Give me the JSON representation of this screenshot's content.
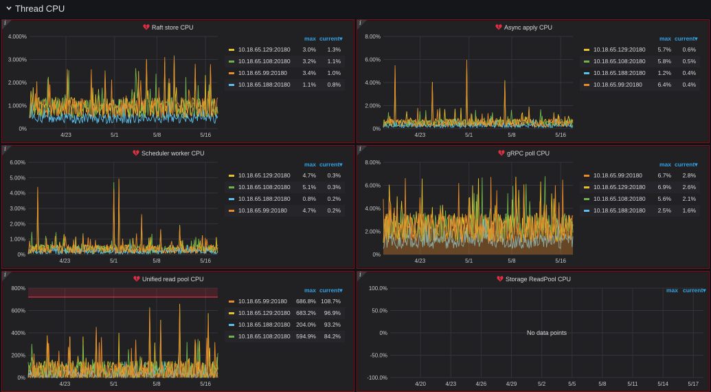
{
  "row": {
    "title": "Thread CPU"
  },
  "legend_headers": {
    "max": "max",
    "current": "current▾"
  },
  "panels": [
    {
      "title": "Raft store CPU",
      "y_ticks": [
        "4.000%",
        "3.000%",
        "2.000%",
        "1.000%",
        "0%"
      ],
      "x_ticks": [
        "4/23",
        "5/1",
        "5/8",
        "5/16"
      ],
      "series": [
        {
          "name": "10.18.65.129:20180",
          "color": "#e5c22c",
          "max": "3.0%",
          "current": "1.3%"
        },
        {
          "name": "10.18.65.108:20180",
          "color": "#6fb54b",
          "max": "3.2%",
          "current": "1.1%"
        },
        {
          "name": "10.18.65.99:20180",
          "color": "#eb8c2a",
          "max": "3.4%",
          "current": "1.0%"
        },
        {
          "name": "10.18.65.188:20180",
          "color": "#5ac0ed",
          "max": "1.1%",
          "current": "0.8%"
        }
      ],
      "chart_data": {
        "type": "line",
        "ylim": [
          0,
          4
        ],
        "unit": "%",
        "x_range": [
          "4/17",
          "5/18"
        ],
        "baseline": 0.9,
        "noise": 0.45,
        "spikes": [
          [
            0.1,
            2.3
          ],
          [
            0.2,
            2.8
          ],
          [
            0.33,
            2.7
          ],
          [
            0.4,
            2.6
          ],
          [
            0.58,
            2.5
          ],
          [
            0.62,
            3.1
          ],
          [
            0.72,
            3.2
          ],
          [
            0.77,
            3.3
          ],
          [
            0.88,
            2.9
          ],
          [
            0.96,
            2.8
          ]
        ]
      }
    },
    {
      "title": "Async apply CPU",
      "y_ticks": [
        "8.00%",
        "6.00%",
        "4.00%",
        "2.00%",
        "0%"
      ],
      "x_ticks": [
        "4/23",
        "5/1",
        "5/8",
        "5/16"
      ],
      "series": [
        {
          "name": "10.18.65.129:20180",
          "color": "#e5c22c",
          "max": "5.7%",
          "current": "0.6%"
        },
        {
          "name": "10.18.65.108:20180",
          "color": "#6fb54b",
          "max": "5.8%",
          "current": "0.5%"
        },
        {
          "name": "10.18.65.188:20180",
          "color": "#5ac0ed",
          "max": "1.2%",
          "current": "0.4%"
        },
        {
          "name": "10.18.65.99:20180",
          "color": "#eb8c2a",
          "max": "6.4%",
          "current": "0.4%"
        }
      ],
      "chart_data": {
        "type": "line",
        "ylim": [
          0,
          8
        ],
        "unit": "%",
        "x_range": [
          "4/17",
          "5/18"
        ],
        "baseline": 0.5,
        "noise": 0.35,
        "spikes": [
          [
            0.06,
            5.6
          ],
          [
            0.26,
            4.3
          ],
          [
            0.44,
            6.3
          ],
          [
            0.64,
            4.4
          ],
          [
            0.77,
            2.0
          ],
          [
            0.9,
            1.5
          ]
        ]
      }
    },
    {
      "title": "Scheduler worker CPU",
      "y_ticks": [
        "6.00%",
        "5.00%",
        "4.00%",
        "3.00%",
        "2.00%",
        "1.00%",
        "0%"
      ],
      "x_ticks": [
        "4/23",
        "5/1",
        "5/8",
        "5/16"
      ],
      "series": [
        {
          "name": "10.18.65.129:20180",
          "color": "#e5c22c",
          "max": "4.7%",
          "current": "0.3%"
        },
        {
          "name": "10.18.65.108:20180",
          "color": "#6fb54b",
          "max": "5.1%",
          "current": "0.3%"
        },
        {
          "name": "10.18.65.188:20180",
          "color": "#5ac0ed",
          "max": "0.8%",
          "current": "0.2%"
        },
        {
          "name": "10.18.65.99:20180",
          "color": "#eb8c2a",
          "max": "4.7%",
          "current": "0.2%"
        }
      ],
      "chart_data": {
        "type": "line",
        "ylim": [
          0,
          6
        ],
        "unit": "%",
        "x_range": [
          "4/17",
          "5/18"
        ],
        "baseline": 0.35,
        "noise": 0.3,
        "spikes": [
          [
            0.05,
            4.7
          ],
          [
            0.29,
            1.4
          ],
          [
            0.45,
            4.7
          ],
          [
            0.48,
            5.1
          ],
          [
            0.6,
            2.7
          ],
          [
            0.7,
            1.7
          ],
          [
            0.8,
            2.1
          ],
          [
            0.92,
            1.3
          ]
        ]
      }
    },
    {
      "title": "gRPC poll CPU",
      "y_ticks": [
        "8.00%",
        "6.00%",
        "4.00%",
        "2.00%",
        "0%"
      ],
      "x_ticks": [
        "4/23",
        "5/1",
        "5/8",
        "5/16"
      ],
      "series": [
        {
          "name": "10.18.65.99:20180",
          "color": "#eb8c2a",
          "max": "6.7%",
          "current": "2.8%"
        },
        {
          "name": "10.18.65.129:20180",
          "color": "#e5c22c",
          "max": "6.9%",
          "current": "2.6%"
        },
        {
          "name": "10.18.65.108:20180",
          "color": "#6fb54b",
          "max": "5.6%",
          "current": "2.1%"
        },
        {
          "name": "10.18.65.188:20180",
          "color": "#5ac0ed",
          "max": "2.5%",
          "current": "1.6%"
        }
      ],
      "chart_data": {
        "type": "area",
        "ylim": [
          0,
          8
        ],
        "unit": "%",
        "x_range": [
          "4/17",
          "5/18"
        ],
        "baseline": 2.3,
        "noise": 1.3,
        "spikes": [
          [
            0.04,
            4.8
          ],
          [
            0.3,
            4.5
          ],
          [
            0.45,
            5.0
          ],
          [
            0.7,
            6.9
          ],
          [
            0.74,
            6.3
          ],
          [
            0.85,
            4.9
          ]
        ]
      }
    },
    {
      "title": "Unified read pool CPU",
      "y_ticks": [
        "800%",
        "600%",
        "400%",
        "200%",
        "0%"
      ],
      "x_ticks": [
        "4/23",
        "5/1",
        "5/8",
        "5/16"
      ],
      "series": [
        {
          "name": "10.18.65.99:20180",
          "color": "#eb8c2a",
          "max": "686.8%",
          "current": "108.7%"
        },
        {
          "name": "10.18.65.129:20180",
          "color": "#e5c22c",
          "max": "683.2%",
          "current": "96.9%"
        },
        {
          "name": "10.18.65.188:20180",
          "color": "#5ac0ed",
          "max": "204.0%",
          "current": "93.2%"
        },
        {
          "name": "10.18.65.108:20180",
          "color": "#6fb54b",
          "max": "594.9%",
          "current": "84.2%"
        }
      ],
      "chart_data": {
        "type": "area",
        "ylim": [
          0,
          800
        ],
        "unit": "%",
        "threshold": 720,
        "x_range": [
          "4/17",
          "5/18"
        ],
        "baseline": 60,
        "noise": 90,
        "spikes": [
          [
            0.1,
            400
          ],
          [
            0.22,
            410
          ],
          [
            0.36,
            480
          ],
          [
            0.5,
            470
          ],
          [
            0.64,
            660
          ],
          [
            0.7,
            570
          ],
          [
            0.8,
            680
          ],
          [
            0.88,
            380
          ],
          [
            0.95,
            590
          ]
        ]
      }
    },
    {
      "title": "Storage ReadPool CPU",
      "y_ticks": [
        "100.0%",
        "50.0%",
        "0%",
        "-50.0%",
        "-100.0%"
      ],
      "x_ticks": [
        "4/20",
        "4/23",
        "4/26",
        "4/29",
        "5/2",
        "5/5",
        "5/8",
        "5/11",
        "5/14",
        "5/17"
      ],
      "series": [],
      "no_data_text": "No data points",
      "chart_data": {
        "type": "line",
        "ylim": [
          -100,
          100
        ],
        "unit": "%",
        "x_range": [
          "4/17",
          "5/18"
        ]
      }
    }
  ]
}
